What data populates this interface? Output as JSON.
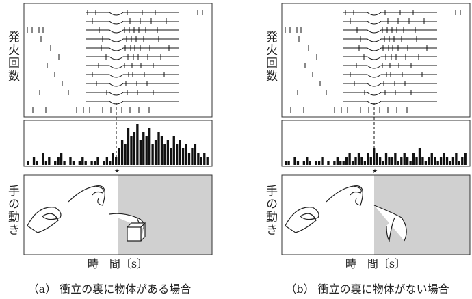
{
  "panels": [
    {
      "y_label": "発火回数",
      "hand_label": "手の動き",
      "marker": "★",
      "x_label": "時　間〔s〕",
      "caption": "（a） 衝立の裏に物体がある場合",
      "histogram": [
        1,
        0,
        2,
        1,
        0,
        3,
        1,
        2,
        0,
        1,
        2,
        3,
        1,
        0,
        2,
        1,
        0,
        1,
        2,
        1,
        0,
        1,
        1,
        2,
        0,
        1,
        2,
        1,
        3,
        2,
        4,
        6,
        5,
        9,
        7,
        8,
        10,
        6,
        8,
        7,
        9,
        5,
        6,
        8,
        7,
        5,
        6,
        4,
        7,
        5,
        6,
        4,
        5,
        3,
        4,
        5,
        3,
        2,
        3,
        2
      ]
    },
    {
      "y_label": "発火回数",
      "hand_label": "手の動き",
      "marker": "★",
      "x_label": "時　間〔s〕",
      "caption": "（b） 衝立の裏に物体がない場合",
      "histogram": [
        1,
        1,
        0,
        2,
        1,
        0,
        1,
        2,
        1,
        0,
        1,
        1,
        2,
        0,
        1,
        0,
        1,
        2,
        1,
        1,
        2,
        3,
        1,
        2,
        3,
        2,
        1,
        3,
        2,
        4,
        3,
        2,
        1,
        3,
        2,
        2,
        3,
        1,
        2,
        3,
        2,
        1,
        3,
        2,
        4,
        2,
        1,
        2,
        3,
        2,
        1,
        2,
        3,
        2,
        1,
        2,
        3,
        1,
        2,
        3
      ]
    }
  ]
}
